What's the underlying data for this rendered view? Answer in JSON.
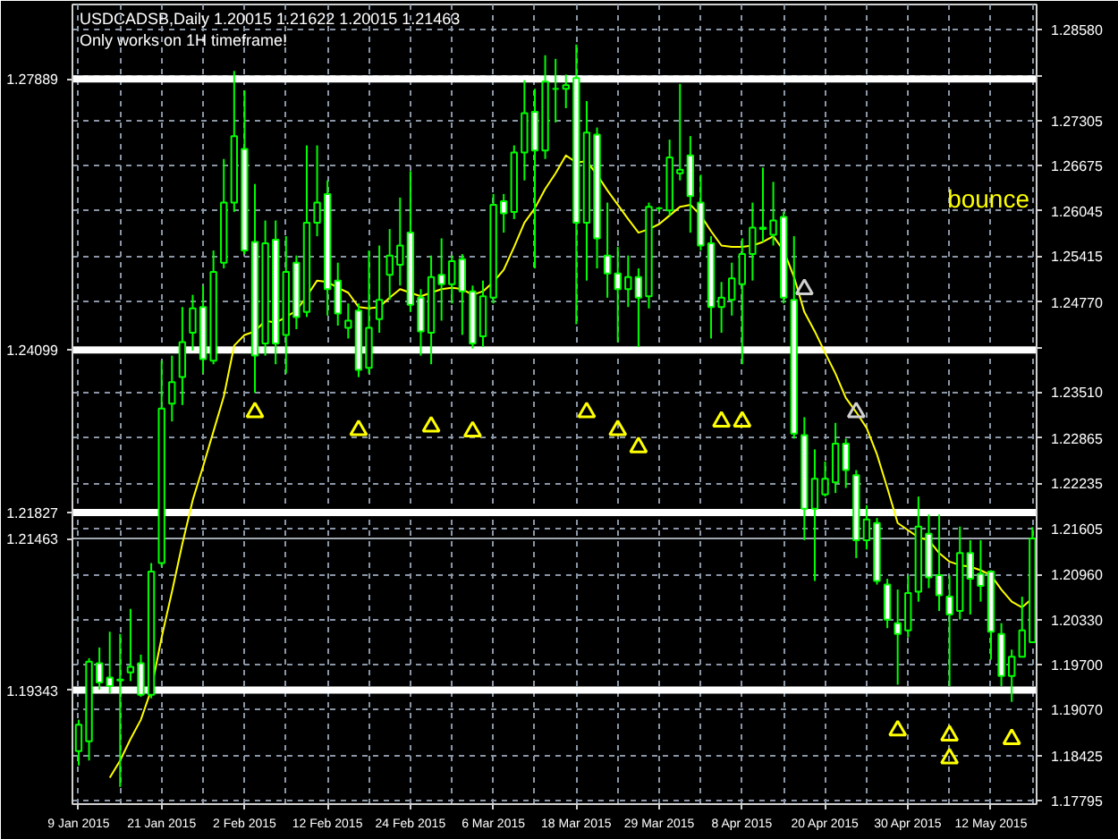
{
  "chart_data": {
    "type": "candlestick",
    "title": "USDCADSB,Daily  1.20015 1.21622 1.20015 1.21463",
    "subtitle": "Only works on 1H timeframe!",
    "annotations": [
      "bounce"
    ],
    "categories": [
      "9 Jan 2015",
      null,
      null,
      null,
      null,
      null,
      null,
      null,
      "21 Jan 2015",
      null,
      null,
      null,
      null,
      null,
      null,
      null,
      "2 Feb 2015",
      null,
      null,
      null,
      null,
      null,
      null,
      null,
      "12 Feb 2015",
      null,
      null,
      null,
      null,
      null,
      null,
      null,
      "24 Feb 2015",
      null,
      null,
      null,
      null,
      null,
      null,
      null,
      "6 Mar 2015",
      null,
      null,
      null,
      null,
      null,
      null,
      null,
      "18 Mar 2015",
      null,
      null,
      null,
      null,
      null,
      null,
      null,
      "29 Mar 2015",
      null,
      null,
      null,
      null,
      null,
      null,
      null,
      "8 Apr 2015",
      null,
      null,
      null,
      null,
      null,
      null,
      null,
      "20 Apr 2015",
      null,
      null,
      null,
      null,
      null,
      null,
      null,
      "30 Apr 2015",
      null,
      null,
      null,
      null,
      null,
      null,
      null,
      "12 May 2015",
      null,
      null,
      null,
      null
    ],
    "ohlc": [
      [
        1.1849,
        1.1893,
        1.1829,
        1.1886
      ],
      [
        1.1863,
        1.1979,
        1.1836,
        1.1974
      ],
      [
        1.1972,
        1.1994,
        1.1935,
        1.1945
      ],
      [
        1.1952,
        1.2016,
        1.193,
        1.194
      ],
      [
        1.1949,
        1.2013,
        1.1799,
        1.1948
      ],
      [
        1.1959,
        1.2048,
        1.1947,
        1.1967
      ],
      [
        1.1972,
        1.1984,
        1.1925,
        1.1928
      ],
      [
        1.1928,
        1.2112,
        1.1923,
        1.21
      ],
      [
        1.2112,
        1.2395,
        1.2107,
        1.2328
      ],
      [
        1.2335,
        1.2402,
        1.231,
        1.2365
      ],
      [
        1.2372,
        1.247,
        1.2333,
        1.2421
      ],
      [
        1.2434,
        1.2487,
        1.2409,
        1.2468
      ],
      [
        1.247,
        1.25,
        1.2377,
        1.2397
      ],
      [
        1.2395,
        1.2549,
        1.239,
        1.2519
      ],
      [
        1.2532,
        1.2677,
        1.2524,
        1.2616
      ],
      [
        1.2616,
        1.28,
        1.2603,
        1.2709
      ],
      [
        1.2691,
        1.2773,
        1.2544,
        1.2549
      ],
      [
        1.2561,
        1.2642,
        1.235,
        1.2402
      ],
      [
        1.2419,
        1.2591,
        1.2402,
        1.2559
      ],
      [
        1.2564,
        1.2591,
        1.239,
        1.2419
      ],
      [
        1.2431,
        1.2569,
        1.2377,
        1.2519
      ],
      [
        1.2532,
        1.2542,
        1.2439,
        1.2456
      ],
      [
        1.2463,
        1.2696,
        1.2456,
        1.2588
      ],
      [
        1.2588,
        1.2696,
        1.2569,
        1.2616
      ],
      [
        1.2628,
        1.2647,
        1.2458,
        1.2495
      ],
      [
        1.2507,
        1.2532,
        1.2444,
        1.2461
      ],
      [
        1.2441,
        1.2475,
        1.2426,
        1.2451
      ],
      [
        1.2465,
        1.2475,
        1.2372,
        1.2382
      ],
      [
        1.2385,
        1.2549,
        1.2377,
        1.2441
      ],
      [
        1.2453,
        1.2556,
        1.2434,
        1.248
      ],
      [
        1.2515,
        1.2579,
        1.248,
        1.2542
      ],
      [
        1.2529,
        1.2623,
        1.25,
        1.2556
      ],
      [
        1.2574,
        1.266,
        1.2463,
        1.2473
      ],
      [
        1.2483,
        1.2495,
        1.2402,
        1.2436
      ],
      [
        1.2434,
        1.2542,
        1.239,
        1.2512
      ],
      [
        1.2515,
        1.2566,
        1.2451,
        1.2502
      ],
      [
        1.2502,
        1.2542,
        1.2475,
        1.2534
      ],
      [
        1.2537,
        1.2544,
        1.2431,
        1.2492
      ],
      [
        1.2492,
        1.25,
        1.2412,
        1.2419
      ],
      [
        1.2429,
        1.2507,
        1.2414,
        1.2485
      ],
      [
        1.2483,
        1.2628,
        1.2475,
        1.2613
      ],
      [
        1.2618,
        1.2628,
        1.2574,
        1.2601
      ],
      [
        1.2603,
        1.2696,
        1.2593,
        1.2686
      ],
      [
        1.2686,
        1.2787,
        1.2647,
        1.2741
      ],
      [
        1.2743,
        1.2775,
        1.2524,
        1.2689
      ],
      [
        1.2689,
        1.2822,
        1.2677,
        1.2785
      ],
      [
        1.2775,
        1.2817,
        1.2728,
        1.2775
      ],
      [
        1.2775,
        1.2795,
        1.2748,
        1.278
      ],
      [
        1.279,
        1.2837,
        1.2446,
        1.2588
      ],
      [
        1.2588,
        1.2758,
        1.2507,
        1.2714
      ],
      [
        1.2711,
        1.2721,
        1.2524,
        1.2566
      ],
      [
        1.2542,
        1.2616,
        1.2483,
        1.2517
      ],
      [
        1.2517,
        1.2554,
        1.2421,
        1.2495
      ],
      [
        1.2495,
        1.2542,
        1.247,
        1.2512
      ],
      [
        1.2512,
        1.2524,
        1.2414,
        1.2483
      ],
      [
        1.2485,
        1.2616,
        1.2468,
        1.261
      ],
      [
        1.2608,
        1.261,
        1.2603,
        1.2608
      ],
      [
        1.2605,
        1.2704,
        1.2598,
        1.2679
      ],
      [
        1.2657,
        1.2782,
        1.2647,
        1.2662
      ],
      [
        1.2682,
        1.2709,
        1.2574,
        1.2625
      ],
      [
        1.2616,
        1.2655,
        1.2549,
        1.2556
      ],
      [
        1.2559,
        1.2569,
        1.2426,
        1.247
      ],
      [
        1.247,
        1.2505,
        1.2434,
        1.2483
      ],
      [
        1.248,
        1.2532,
        1.2458,
        1.251
      ],
      [
        1.2502,
        1.2566,
        1.239,
        1.2544
      ],
      [
        1.2544,
        1.2616,
        1.2507,
        1.2581
      ],
      [
        1.2579,
        1.2665,
        1.2561,
        1.2581
      ],
      [
        1.2571,
        1.2645,
        1.2556,
        1.2591
      ],
      [
        1.2596,
        1.2603,
        1.2475,
        1.2483
      ],
      [
        1.248,
        1.2569,
        1.2286,
        1.2293
      ],
      [
        1.2291,
        1.2316,
        1.2144,
        1.2188
      ],
      [
        1.2188,
        1.2271,
        1.2087,
        1.223
      ],
      [
        1.2208,
        1.2254,
        1.2205,
        1.223
      ],
      [
        1.2225,
        1.2308,
        1.221,
        1.2279
      ],
      [
        1.2279,
        1.2286,
        1.2217,
        1.2242
      ],
      [
        1.2235,
        1.2242,
        1.2119,
        1.2144
      ],
      [
        1.2144,
        1.2193,
        1.2131,
        1.2173
      ],
      [
        1.2168,
        1.2175,
        1.2082,
        1.2087
      ],
      [
        1.2082,
        1.209,
        1.2021,
        1.2033
      ],
      [
        1.2028,
        1.2075,
        1.1942,
        1.2013
      ],
      [
        1.2018,
        1.2095,
        1.2008,
        1.207
      ],
      [
        1.2072,
        1.2205,
        1.2058,
        1.2163
      ],
      [
        1.2153,
        1.218,
        1.2077,
        1.2092
      ],
      [
        1.2095,
        1.218,
        1.2045,
        1.2067
      ],
      [
        1.2065,
        1.2095,
        1.194,
        1.204
      ],
      [
        1.2045,
        1.2163,
        1.2033,
        1.2126
      ],
      [
        1.2126,
        1.2144,
        1.204,
        1.209
      ],
      [
        1.2097,
        1.2144,
        1.2058,
        1.208
      ],
      [
        1.21,
        1.2102,
        1.1977,
        1.2016
      ],
      [
        1.2013,
        1.2028,
        1.194,
        1.1954
      ],
      [
        1.1954,
        1.1991,
        1.1918,
        1.1981
      ],
      [
        1.1981,
        1.2065,
        1.1981,
        1.2018
      ],
      [
        1.20015,
        1.21622,
        1.20015,
        1.21463
      ]
    ],
    "series": [
      {
        "type": "line",
        "color": "#ffff00",
        "values": [
          null,
          null,
          null,
          1.1812,
          1.1836,
          1.1866,
          1.1893,
          1.1935,
          1.2008,
          1.2072,
          1.2139,
          1.22,
          1.2247,
          1.2296,
          1.2345,
          1.2416,
          1.2431,
          1.2436,
          1.2451,
          1.2448,
          1.2456,
          1.2465,
          1.2485,
          1.2507,
          1.2505,
          1.2497,
          1.249,
          1.247,
          1.2468,
          1.247,
          1.2483,
          1.2495,
          1.249,
          1.2485,
          1.249,
          1.2495,
          1.2497,
          1.2495,
          1.2487,
          1.2492,
          1.2505,
          1.2522,
          1.2554,
          1.2588,
          1.2608,
          1.2635,
          1.2657,
          1.2682,
          1.2672,
          1.2674,
          1.2655,
          1.2633,
          1.2613,
          1.2593,
          1.2574,
          1.2579,
          1.2586,
          1.2598,
          1.261,
          1.2613,
          1.2598,
          1.2576,
          1.2556,
          1.2554,
          1.2554,
          1.2556,
          1.2561,
          1.2569,
          1.2549,
          1.2512,
          1.2463,
          1.2436,
          1.2406,
          1.2377,
          1.2343,
          1.2323,
          1.2301,
          1.2264,
          1.2217,
          1.2168,
          1.2158,
          1.2148,
          1.2144,
          1.2126,
          1.2114,
          1.2109,
          1.2107,
          1.2102,
          1.2095,
          1.2075,
          1.2058,
          1.205,
          1.2063
        ]
      },
      {
        "type": "scatter",
        "marker": "triangle",
        "color": "#ffff00",
        "values": [
          null,
          null,
          null,
          null,
          null,
          null,
          null,
          null,
          null,
          null,
          null,
          null,
          null,
          null,
          null,
          null,
          null,
          1.2323,
          null,
          null,
          null,
          null,
          null,
          null,
          null,
          null,
          null,
          1.2298,
          null,
          null,
          null,
          null,
          null,
          null,
          1.2303,
          null,
          null,
          null,
          1.2296,
          null,
          null,
          null,
          null,
          null,
          null,
          null,
          null,
          null,
          null,
          1.2323,
          null,
          null,
          1.2298,
          null,
          1.2274,
          null,
          null,
          null,
          null,
          null,
          null,
          null,
          1.231,
          null,
          1.231,
          null,
          null,
          null,
          null,
          null,
          null,
          null,
          null,
          null,
          null,
          null,
          null,
          null,
          null,
          1.1878,
          null,
          null,
          null,
          null,
          1.1871,
          null,
          null,
          null,
          null,
          null,
          1.1866,
          null,
          null
        ]
      },
      {
        "type": "scatter",
        "marker": "triangle",
        "color": "#ffff00",
        "values": [
          null,
          null,
          null,
          null,
          null,
          null,
          null,
          null,
          null,
          null,
          null,
          null,
          null,
          null,
          null,
          null,
          null,
          null,
          null,
          null,
          null,
          null,
          null,
          null,
          null,
          null,
          null,
          null,
          null,
          null,
          null,
          null,
          null,
          null,
          null,
          null,
          null,
          null,
          null,
          null,
          null,
          null,
          null,
          null,
          null,
          null,
          null,
          null,
          null,
          null,
          null,
          null,
          null,
          null,
          null,
          null,
          null,
          null,
          null,
          null,
          null,
          null,
          null,
          null,
          null,
          null,
          null,
          null,
          null,
          null,
          null,
          null,
          null,
          null,
          null,
          null,
          null,
          null,
          null,
          null,
          null,
          null,
          null,
          null,
          1.1839,
          null,
          null,
          null,
          null,
          null,
          null,
          null,
          null
        ]
      },
      {
        "type": "scatter",
        "marker": "triangle",
        "color": "#d0d0d0",
        "values": [
          null,
          null,
          null,
          null,
          null,
          null,
          null,
          null,
          null,
          null,
          null,
          null,
          null,
          null,
          null,
          null,
          null,
          null,
          null,
          null,
          null,
          null,
          null,
          null,
          null,
          null,
          null,
          null,
          null,
          null,
          null,
          null,
          null,
          null,
          null,
          null,
          null,
          null,
          null,
          null,
          null,
          null,
          null,
          null,
          null,
          null,
          null,
          null,
          null,
          null,
          null,
          null,
          null,
          null,
          null,
          null,
          null,
          null,
          null,
          null,
          null,
          null,
          null,
          null,
          null,
          null,
          null,
          null,
          null,
          null,
          1.2495,
          null,
          null,
          null,
          null,
          1.2323,
          null,
          null,
          null,
          null,
          null,
          null,
          null,
          null,
          null,
          null,
          null,
          null,
          null,
          null,
          null,
          null,
          null
        ]
      }
    ],
    "ylim": [
      1.1775,
      1.2893
    ],
    "yticks": [
      {
        "value": 1.2858,
        "label": "1.28580"
      },
      {
        "value": 1.27935,
        "label": null
      },
      1.27305,
      1.26675,
      1.26045,
      1.25415,
      {
        "value": 1.2477,
        "label": "1.24770"
      },
      {
        "value": 1.2414,
        "label": null
      },
      {
        "value": 1.2351,
        "label": "1.23510"
      },
      1.22865,
      1.22235,
      1.21605,
      {
        "value": 1.2096,
        "label": "1.20960"
      },
      {
        "value": 1.2033,
        "label": "1.20330"
      },
      {
        "value": 1.197,
        "label": "1.19700"
      },
      {
        "value": 1.1907,
        "label": "1.19070"
      },
      1.18425,
      1.17795
    ],
    "ref_lines": [
      {
        "axis": "y",
        "value": 1.27889,
        "label": "1.27889",
        "color": "#ffffff"
      },
      {
        "axis": "y",
        "value": 1.24099,
        "label": "1.24099",
        "color": "#ffffff"
      },
      {
        "axis": "y",
        "value": 1.21827,
        "label": "1.21827",
        "color": "#ffffff"
      },
      {
        "axis": "y",
        "value": 1.21463,
        "label": "1.21463",
        "color": "#a0a8b0"
      },
      {
        "axis": "y",
        "value": 1.19343,
        "label": "1.19343",
        "color": "#ffffff"
      }
    ],
    "grid": true
  }
}
